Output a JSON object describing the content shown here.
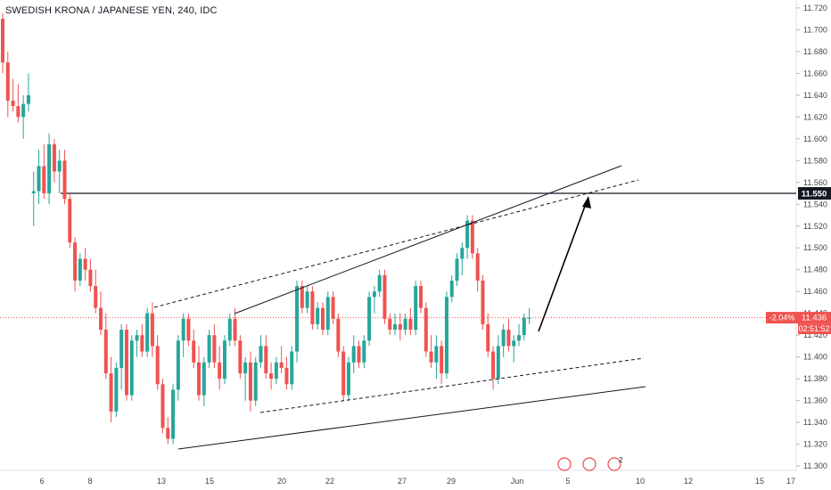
{
  "chart_title": "SWEDISH KRONA / JAPANESE YEN, 240, IDC",
  "colors": {
    "up": "#26a69a",
    "down": "#ef5350",
    "current_price": "#ef5350",
    "level_line": "#131722",
    "event_marker": "#e84d4d"
  },
  "chart_data": {
    "type": "candlestick",
    "title": "SWEDISH KRONA / JAPANESE YEN, 240, IDC",
    "yticks": [
      "11.720",
      "11.700",
      "11.680",
      "11.660",
      "11.640",
      "11.620",
      "11.600",
      "11.580",
      "11.560",
      "11.540",
      "11.520",
      "11.500",
      "11.480",
      "11.460",
      "11.440",
      "11.420",
      "11.400",
      "11.380",
      "11.360",
      "11.340",
      "11.320",
      "11.300"
    ],
    "ylim": [
      11.296,
      11.724
    ],
    "xticks": [
      "6",
      "8",
      "13",
      "15",
      "20",
      "22",
      "27",
      "29",
      "Jun",
      "5",
      "10",
      "12",
      "15",
      "17"
    ],
    "candles": [
      [
        11.71,
        11.715,
        11.66,
        11.67
      ],
      [
        11.67,
        11.68,
        11.62,
        11.635
      ],
      [
        11.635,
        11.655,
        11.625,
        11.63
      ],
      [
        11.63,
        11.65,
        11.615,
        11.62
      ],
      [
        11.62,
        11.64,
        11.6,
        11.632
      ],
      [
        11.632,
        11.66,
        11.625,
        11.64
      ],
      [
        11.55,
        11.57,
        11.52,
        11.552
      ],
      [
        11.552,
        11.59,
        11.54,
        11.575
      ],
      [
        11.575,
        11.595,
        11.545,
        11.55
      ],
      [
        11.55,
        11.605,
        11.54,
        11.595
      ],
      [
        11.595,
        11.6,
        11.56,
        11.57
      ],
      [
        11.57,
        11.59,
        11.55,
        11.58
      ],
      [
        11.58,
        11.59,
        11.54,
        11.545
      ],
      [
        11.545,
        11.55,
        11.5,
        11.505
      ],
      [
        11.505,
        11.51,
        11.46,
        11.47
      ],
      [
        11.47,
        11.495,
        11.465,
        11.49
      ],
      [
        11.49,
        11.5,
        11.47,
        11.48
      ],
      [
        11.48,
        11.49,
        11.46,
        11.465
      ],
      [
        11.465,
        11.48,
        11.44,
        11.445
      ],
      [
        11.445,
        11.46,
        11.42,
        11.425
      ],
      [
        11.425,
        11.44,
        11.38,
        11.385
      ],
      [
        11.385,
        11.4,
        11.34,
        11.35
      ],
      [
        11.35,
        11.395,
        11.345,
        11.39
      ],
      [
        11.39,
        11.43,
        11.37,
        11.425
      ],
      [
        11.425,
        11.43,
        11.36,
        11.365
      ],
      [
        11.365,
        11.42,
        11.36,
        11.415
      ],
      [
        11.415,
        11.425,
        11.4,
        11.42
      ],
      [
        11.42,
        11.43,
        11.4,
        11.405
      ],
      [
        11.405,
        11.445,
        11.4,
        11.44
      ],
      [
        11.44,
        11.45,
        11.4,
        11.41
      ],
      [
        11.41,
        11.42,
        11.37,
        11.375
      ],
      [
        11.375,
        11.38,
        11.33,
        11.335
      ],
      [
        11.335,
        11.345,
        11.32,
        11.325
      ],
      [
        11.325,
        11.375,
        11.32,
        11.37
      ],
      [
        11.37,
        11.42,
        11.36,
        11.415
      ],
      [
        11.415,
        11.44,
        11.4,
        11.435
      ],
      [
        11.435,
        11.44,
        11.41,
        11.415
      ],
      [
        11.415,
        11.425,
        11.39,
        11.395
      ],
      [
        11.395,
        11.41,
        11.36,
        11.365
      ],
      [
        11.365,
        11.4,
        11.355,
        11.395
      ],
      [
        11.395,
        11.425,
        11.39,
        11.42
      ],
      [
        11.42,
        11.43,
        11.39,
        11.395
      ],
      [
        11.395,
        11.41,
        11.37,
        11.38
      ],
      [
        11.38,
        11.42,
        11.375,
        11.415
      ],
      [
        11.415,
        11.44,
        11.41,
        11.435
      ],
      [
        11.435,
        11.445,
        11.41,
        11.415
      ],
      [
        11.415,
        11.42,
        11.38,
        11.385
      ],
      [
        11.385,
        11.4,
        11.36,
        11.395
      ],
      [
        11.395,
        11.405,
        11.35,
        11.36
      ],
      [
        11.36,
        11.4,
        11.355,
        11.395
      ],
      [
        11.395,
        11.42,
        11.39,
        11.41
      ],
      [
        11.41,
        11.42,
        11.38,
        11.385
      ],
      [
        11.385,
        11.395,
        11.37,
        11.38
      ],
      [
        11.38,
        11.4,
        11.375,
        11.395
      ],
      [
        11.395,
        11.41,
        11.385,
        11.39
      ],
      [
        11.39,
        11.4,
        11.37,
        11.375
      ],
      [
        11.375,
        11.41,
        11.37,
        11.405
      ],
      [
        11.405,
        11.47,
        11.395,
        11.465
      ],
      [
        11.465,
        11.47,
        11.44,
        11.445
      ],
      [
        11.445,
        11.465,
        11.44,
        11.46
      ],
      [
        11.46,
        11.465,
        11.425,
        11.43
      ],
      [
        11.43,
        11.45,
        11.425,
        11.445
      ],
      [
        11.445,
        11.45,
        11.42,
        11.425
      ],
      [
        11.425,
        11.46,
        11.42,
        11.455
      ],
      [
        11.455,
        11.46,
        11.43,
        11.435
      ],
      [
        11.435,
        11.44,
        11.4,
        11.405
      ],
      [
        11.405,
        11.41,
        11.36,
        11.365
      ],
      [
        11.365,
        11.4,
        11.36,
        11.395
      ],
      [
        11.395,
        11.42,
        11.385,
        11.41
      ],
      [
        11.41,
        11.415,
        11.39,
        11.395
      ],
      [
        11.395,
        11.42,
        11.39,
        11.415
      ],
      [
        11.415,
        11.46,
        11.41,
        11.455
      ],
      [
        11.455,
        11.465,
        11.44,
        11.46
      ],
      [
        11.46,
        11.48,
        11.455,
        11.475
      ],
      [
        11.475,
        11.48,
        11.43,
        11.435
      ],
      [
        11.435,
        11.44,
        11.42,
        11.425
      ],
      [
        11.425,
        11.44,
        11.42,
        11.43
      ],
      [
        11.43,
        11.44,
        11.415,
        11.425
      ],
      [
        11.425,
        11.44,
        11.42,
        11.435
      ],
      [
        11.435,
        11.445,
        11.42,
        11.425
      ],
      [
        11.425,
        11.47,
        11.42,
        11.465
      ],
      [
        11.465,
        11.47,
        11.44,
        11.445
      ],
      [
        11.445,
        11.45,
        11.4,
        11.405
      ],
      [
        11.405,
        11.42,
        11.39,
        11.395
      ],
      [
        11.395,
        11.42,
        11.38,
        11.41
      ],
      [
        11.41,
        11.415,
        11.375,
        11.385
      ],
      [
        11.385,
        11.46,
        11.38,
        11.455
      ],
      [
        11.455,
        11.475,
        11.45,
        11.47
      ],
      [
        11.47,
        11.495,
        11.465,
        11.49
      ],
      [
        11.49,
        11.505,
        11.475,
        11.5
      ],
      [
        11.5,
        11.53,
        11.49,
        11.525
      ],
      [
        11.525,
        11.53,
        11.49,
        11.495
      ],
      [
        11.495,
        11.5,
        11.46,
        11.47
      ],
      [
        11.47,
        11.475,
        11.425,
        11.43
      ],
      [
        11.43,
        11.44,
        11.4,
        11.405
      ],
      [
        11.405,
        11.41,
        11.37,
        11.38
      ],
      [
        11.38,
        11.42,
        11.375,
        11.41
      ],
      [
        11.41,
        11.43,
        11.4,
        11.425
      ],
      [
        11.425,
        11.435,
        11.405,
        11.41
      ],
      [
        11.41,
        11.42,
        11.395,
        11.415
      ],
      [
        11.415,
        11.43,
        11.41,
        11.42
      ],
      [
        11.42,
        11.44,
        11.415,
        11.436
      ],
      [
        11.436,
        11.445,
        11.43,
        11.436
      ]
    ],
    "annotations": [
      {
        "type": "horizontal-level",
        "value": 11.55,
        "label": "11.550"
      },
      {
        "type": "current-price",
        "value": 11.436,
        "label": "11.436",
        "change": "-2.04%",
        "countdown": "02:51:52"
      }
    ]
  },
  "event_markers": [
    {
      "name": "event-marker-1",
      "label": ""
    },
    {
      "name": "event-marker-2",
      "label": ""
    },
    {
      "name": "event-marker-3",
      "label": "2"
    }
  ]
}
